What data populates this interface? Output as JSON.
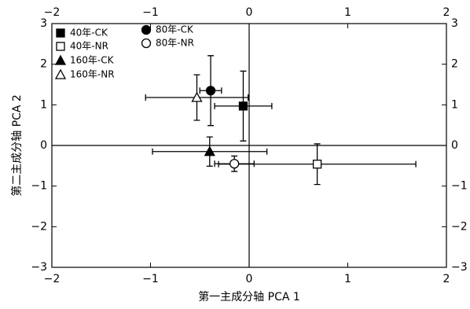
{
  "chart_data": {
    "type": "errorbar-scatter",
    "xlabel": "第一主成分轴 PCA 1",
    "ylabel": "第二主成分轴 PCA 2",
    "xlim": [
      -2,
      2
    ],
    "ylim": [
      -3,
      3
    ],
    "xticks": [
      {
        "value": -2,
        "label": "−2"
      },
      {
        "value": -1,
        "label": "−1"
      },
      0,
      1,
      2
    ],
    "yticks": [
      {
        "value": -3,
        "label": "−3"
      },
      {
        "value": -2,
        "label": "−2"
      },
      {
        "value": -1,
        "label": "−1"
      },
      0,
      1,
      2,
      3
    ],
    "color": "#000000",
    "series": [
      {
        "name": "40年-CK",
        "marker": "square",
        "filled": true,
        "x": -0.06,
        "y": 0.97,
        "xerr": 0.29,
        "yerr": 0.86
      },
      {
        "name": "40年-NR",
        "marker": "square",
        "filled": false,
        "x": 0.69,
        "y": -0.46,
        "xerr": 1.0,
        "yerr": 0.5
      },
      {
        "name": "160年-CK",
        "marker": "triangle",
        "filled": true,
        "x": -0.4,
        "y": -0.15,
        "xerr": 0.58,
        "yerr": 0.36
      },
      {
        "name": "160年-NR",
        "marker": "triangle",
        "filled": false,
        "x": -0.53,
        "y": 1.18,
        "xerr": 0.52,
        "yerr": 0.56
      },
      {
        "name": "80年-CK",
        "marker": "circle",
        "filled": true,
        "x": -0.39,
        "y": 1.35,
        "xerr": 0.11,
        "yerr": 0.86
      },
      {
        "name": "80年-NR",
        "marker": "circle",
        "filled": false,
        "x": -0.15,
        "y": -0.45,
        "xerr": 0.2,
        "yerr": 0.19
      }
    ]
  }
}
